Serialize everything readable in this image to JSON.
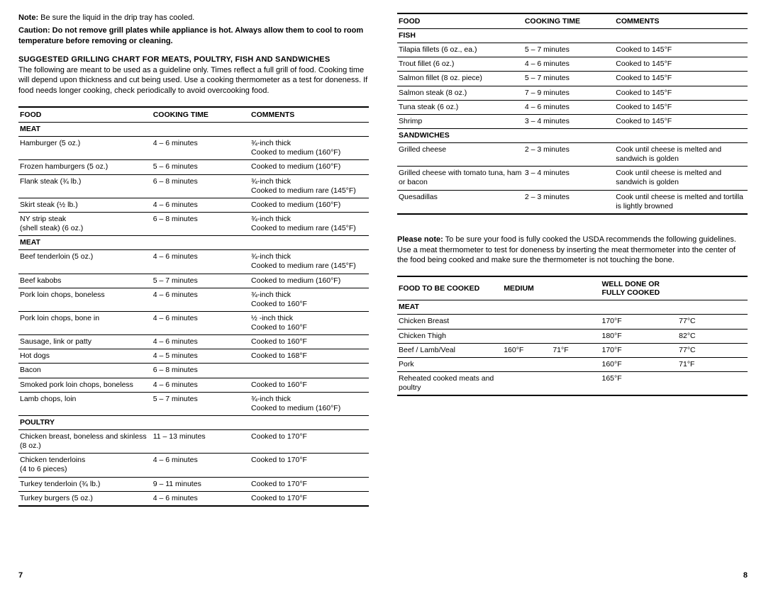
{
  "left": {
    "note_label": "Note:",
    "note_text": "  Be sure the liquid in the drip tray has cooled.",
    "caution_label": "Caution:",
    "caution_text": "  Do not remove grill plates while appliance is hot.  Always allow them to cool to room temperature before removing or cleaning.",
    "heading": "SUGGESTED GRILLING CHART FOR MEATS, POULTRY, FISH AND SANDWICHES",
    "intro": "The following are meant to be used as a guideline only. Times reflect a full grill of food. Cooking time will depend upon thickness and cut being used.  Use a cooking thermometer as a test for doneness. If food needs longer cooking, check periodically to avoid overcooking food.",
    "table": {
      "headers": [
        "Food",
        "Cooking Time",
        "Comments"
      ],
      "col_widths": [
        "38%",
        "28%",
        "34%"
      ],
      "rows": [
        {
          "type": "sub",
          "cells": [
            "Meat",
            "",
            ""
          ]
        },
        {
          "cells": [
            "Hamburger (5 oz.)",
            "4 – 6 minutes",
            "¾-inch thick\nCooked to medium (160°F)"
          ]
        },
        {
          "cells": [
            "Frozen hamburgers (5 oz.)",
            "5 – 6 minutes",
            "Cooked to medium (160°F)"
          ]
        },
        {
          "cells": [
            "Flank steak (¾ lb.)",
            "6 – 8 minutes",
            "¾-inch thick\nCooked to medium rare (145°F)"
          ]
        },
        {
          "cells": [
            "Skirt steak (½ lb.)",
            "4 – 6 minutes",
            "Cooked to medium (160°F)"
          ]
        },
        {
          "cells": [
            "NY strip steak\n(shell steak) (6 oz.)",
            "6 – 8 minutes",
            "¾-inch thick\nCooked to medium rare (145°F)"
          ]
        },
        {
          "type": "sub",
          "cells": [
            "Meat",
            "",
            ""
          ]
        },
        {
          "cells": [
            "Beef tenderloin (5 oz.)",
            "4 – 6 minutes",
            "¾-inch thick\nCooked to medium rare (145°F)"
          ]
        },
        {
          "cells": [
            "Beef kabobs",
            "5 – 7 minutes",
            "Cooked to medium (160°F)"
          ]
        },
        {
          "cells": [
            "Pork loin chops, boneless",
            "4 – 6 minutes",
            "¾-inch thick\nCooked to 160°F"
          ]
        },
        {
          "cells": [
            "Pork loin chops, bone in",
            "4 – 6 minutes",
            "½ -inch thick\nCooked to 160°F"
          ]
        },
        {
          "cells": [
            "Sausage, link or patty",
            "4 – 6 minutes",
            "Cooked to 160°F"
          ]
        },
        {
          "cells": [
            "Hot dogs",
            "4 – 5 minutes",
            "Cooked to 168°F"
          ]
        },
        {
          "cells": [
            "Bacon",
            "6 – 8 minutes",
            ""
          ]
        },
        {
          "cells": [
            "Smoked pork loin chops, boneless",
            "4 – 6 minutes",
            "Cooked to 160°F"
          ]
        },
        {
          "cells": [
            "Lamb chops, loin",
            "5 – 7 minutes",
            "¾-inch thick\nCooked to medium (160°F)"
          ]
        },
        {
          "type": "sub",
          "cells": [
            "Poultry",
            "",
            ""
          ]
        },
        {
          "cells": [
            "Chicken breast, boneless and skinless (8 oz.)",
            "11 – 13 minutes",
            "Cooked to 170°F"
          ]
        },
        {
          "cells": [
            "Chicken tenderloins\n(4 to 6 pieces)",
            "4 – 6 minutes",
            "Cooked to 170°F"
          ]
        },
        {
          "cells": [
            "Turkey tenderloin (¾ lb.)",
            "9 – 11 minutes",
            "Cooked to 170°F"
          ]
        },
        {
          "cells": [
            "Turkey burgers (5 oz.)",
            "4 – 6 minutes",
            "Cooked to 170°F"
          ],
          "last": true
        }
      ]
    },
    "page_num": "7"
  },
  "right": {
    "table": {
      "headers": [
        "Food",
        "Cooking Time",
        "Comments"
      ],
      "col_widths": [
        "36%",
        "26%",
        "38%"
      ],
      "rows": [
        {
          "type": "sub",
          "cells": [
            "Fish",
            "",
            ""
          ]
        },
        {
          "cells": [
            "Tilapia fillets (6 oz., ea.)",
            "5 – 7 minutes",
            "Cooked to 145°F"
          ]
        },
        {
          "cells": [
            "Trout fillet (6 oz.)",
            "4 – 6 minutes",
            "Cooked to 145°F"
          ]
        },
        {
          "cells": [
            "Salmon fillet (8 oz. piece)",
            "5 – 7 minutes",
            "Cooked to 145°F"
          ]
        },
        {
          "cells": [
            "Salmon steak (8 oz.)",
            "7 – 9 minutes",
            "Cooked to 145°F"
          ]
        },
        {
          "cells": [
            "Tuna steak  (6 oz.)",
            "4 – 6 minutes",
            "Cooked to 145°F"
          ]
        },
        {
          "cells": [
            "Shrimp",
            "3 – 4 minutes",
            "Cooked to 145°F"
          ]
        },
        {
          "type": "sub",
          "cells": [
            "Sandwiches",
            "",
            ""
          ]
        },
        {
          "cells": [
            "Grilled cheese",
            "2 – 3 minutes",
            "Cook until cheese is melted and sandwich is golden"
          ]
        },
        {
          "cells": [
            "Grilled cheese with tomato tuna, ham or bacon",
            "3 – 4 minutes",
            "Cook until cheese is melted and sandwich is golden"
          ]
        },
        {
          "cells": [
            "Quesadillas",
            "2 – 3 minutes",
            "Cook until cheese is melted and tortilla is lightly browned"
          ],
          "last": true
        }
      ]
    },
    "please_note_label": "Please note:",
    "please_note_text": " To be sure your food is fully cooked the USDA recommends the following guidelines. Use a meat thermometer to test for doneness by inserting the meat thermometer into the center of the food being cooked and make sure the thermometer is not touching the bone.",
    "temp_table": {
      "headers": [
        "Food to be Cooked",
        "Medium",
        "",
        "Well Done or Fully Cooked",
        ""
      ],
      "col_widths": [
        "30%",
        "14%",
        "14%",
        "22%",
        "20%"
      ],
      "rows": [
        {
          "type": "sub",
          "cells": [
            "Meat",
            "",
            "",
            "",
            ""
          ]
        },
        {
          "cells": [
            "Chicken Breast",
            "",
            "",
            "170°F",
            "77°C"
          ]
        },
        {
          "cells": [
            "Chicken Thigh",
            "",
            "",
            "180°F",
            "82°C"
          ]
        },
        {
          "cells": [
            "Beef / Lamb/Veal",
            "160°F",
            "71°F",
            "170°F",
            "77°C"
          ]
        },
        {
          "cells": [
            "Pork",
            "",
            "",
            "160°F",
            "71°F"
          ]
        },
        {
          "cells": [
            "Reheated cooked meats and poultry",
            "",
            "",
            "165°F",
            ""
          ],
          "last": true
        }
      ]
    },
    "page_num": "8"
  }
}
